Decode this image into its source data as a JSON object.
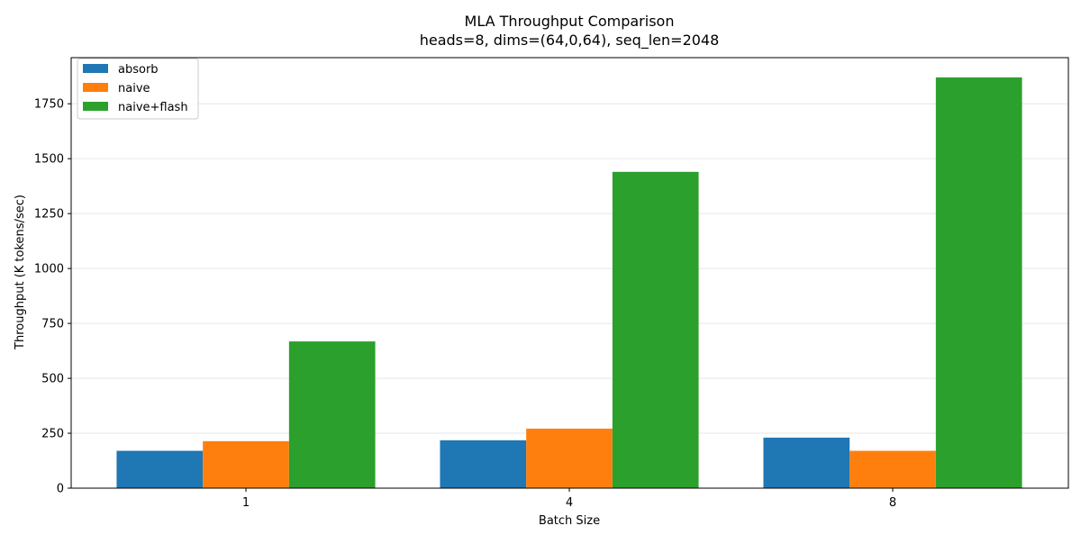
{
  "chart_data": {
    "type": "bar",
    "title": "MLA Throughput Comparison",
    "subtitle": "heads=8, dims=(64,0,64), seq_len=2048",
    "xlabel": "Batch Size",
    "ylabel": "Throughput (K tokens/sec)",
    "categories": [
      "1",
      "4",
      "8"
    ],
    "series": [
      {
        "name": "absorb",
        "color": "#1f77b4",
        "values": [
          170,
          218,
          230
        ]
      },
      {
        "name": "naive",
        "color": "#ff7f0e",
        "values": [
          214,
          271,
          170
        ]
      },
      {
        "name": "naive+flash",
        "color": "#2ca02c",
        "values": [
          668,
          1440,
          1870
        ]
      }
    ],
    "ylim": [
      0,
      1960
    ],
    "yticks": [
      0,
      250,
      500,
      750,
      1000,
      1250,
      1500,
      1750
    ],
    "grid": "y",
    "legend": "top-left"
  }
}
